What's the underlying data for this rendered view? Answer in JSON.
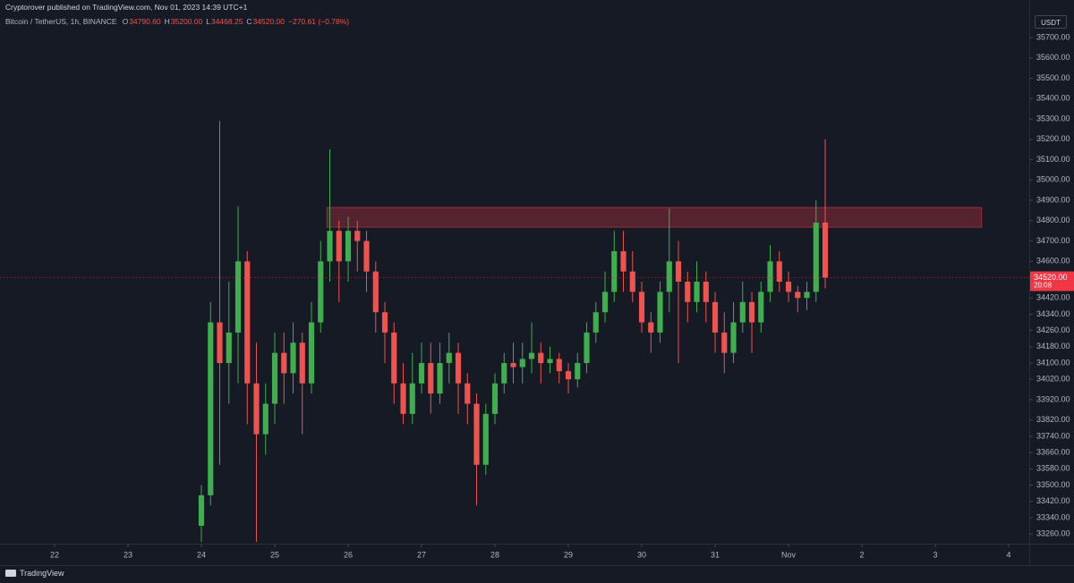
{
  "chart_data": {
    "type": "candlestick",
    "header": "Cryptorover published on TradingView.com, Nov 01, 2023 14:39 UTC+1",
    "legend": {
      "symbol": "Bitcoin / TetherUS, 1h, BINANCE",
      "fields": [
        {
          "key": "O",
          "value": "34790.60"
        },
        {
          "key": "H",
          "value": "35200.00"
        },
        {
          "key": "L",
          "value": "34468.25"
        },
        {
          "key": "C",
          "value": "34520.00"
        }
      ],
      "change": "−270.61 (−0.78%)"
    },
    "currency": "USDT",
    "brand": "TradingView",
    "up_color": "#3fae4f",
    "down_color": "#ef5350",
    "grid": false,
    "xlim": [
      21.256,
      35.28
    ],
    "ylim": [
      33212,
      35885
    ],
    "xticks": [
      22,
      23,
      24,
      25,
      26,
      27,
      28,
      29,
      30,
      31,
      {
        "value": 32,
        "label": "Nov"
      },
      {
        "value": 33,
        "label": "2"
      },
      {
        "value": 34,
        "label": "3"
      },
      {
        "value": 35,
        "label": "4"
      }
    ],
    "yticks": [
      {
        "value": 35700,
        "label": "35700.00"
      },
      {
        "value": 35600,
        "label": "35600.00"
      },
      {
        "value": 35500,
        "label": "35500.00"
      },
      {
        "value": 35400,
        "label": "35400.00"
      },
      {
        "value": 35300,
        "label": "35300.00"
      },
      {
        "value": 35200,
        "label": "35200.00"
      },
      {
        "value": 35100,
        "label": "35100.00"
      },
      {
        "value": 35000,
        "label": "35000.00"
      },
      {
        "value": 34900,
        "label": "34900.00"
      },
      {
        "value": 34800,
        "label": "34800.00"
      },
      {
        "value": 34700,
        "label": "34700.00"
      },
      {
        "value": 34600,
        "label": "34600.00"
      },
      {
        "value": 34420,
        "label": "34420.00"
      },
      {
        "value": 34340,
        "label": "34340.00"
      },
      {
        "value": 34260,
        "label": "34260.00"
      },
      {
        "value": 34180,
        "label": "34180.00"
      },
      {
        "value": 34100,
        "label": "34100.00"
      },
      {
        "value": 34020,
        "label": "34020.00"
      },
      {
        "value": 33920,
        "label": "33920.00"
      },
      {
        "value": 33820,
        "label": "33820.00"
      },
      {
        "value": 33740,
        "label": "33740.00"
      },
      {
        "value": 33660,
        "label": "33660.00"
      },
      {
        "value": 33580,
        "label": "33580.00"
      },
      {
        "value": 33500,
        "label": "33500.00"
      },
      {
        "value": 33420,
        "label": "33420.00"
      },
      {
        "value": 33340,
        "label": "33340.00"
      },
      {
        "value": 33260,
        "label": "33260.00"
      }
    ],
    "price_tag": {
      "value": 34520,
      "label": "34520.00",
      "countdown": "20:08",
      "color": "#f23645"
    },
    "zone": {
      "x": [
        25.71,
        34.63
      ],
      "y": [
        34768,
        34865
      ],
      "color": "#b3303f"
    },
    "series": [
      {
        "name": "BTCUSDT",
        "x": [
          24,
          24.125,
          24.25,
          24.375,
          24.5,
          24.625,
          24.75,
          24.875,
          25,
          25.125,
          25.25,
          25.375,
          25.5,
          25.625,
          25.75,
          25.875,
          26,
          26.125,
          26.25,
          26.375,
          26.5,
          26.625,
          26.75,
          26.875,
          27,
          27.125,
          27.25,
          27.375,
          27.5,
          27.625,
          27.75,
          27.875,
          28,
          28.125,
          28.25,
          28.375,
          28.5,
          28.625,
          28.75,
          28.875,
          29,
          29.125,
          29.25,
          29.375,
          29.5,
          29.625,
          29.75,
          29.875,
          30,
          30.125,
          30.25,
          30.375,
          30.5,
          30.625,
          30.75,
          30.875,
          31,
          31.125,
          31.25,
          31.375,
          31.5,
          31.625,
          31.75,
          31.875,
          32,
          32.125,
          32.25,
          32.375,
          32.5
        ],
        "open": [
          33300,
          33450,
          34300,
          34100,
          34250,
          34600,
          34000,
          33750,
          33900,
          34150,
          34050,
          34200,
          34000,
          34300,
          34600,
          34750,
          34600,
          34750,
          34700,
          34550,
          34350,
          34250,
          34000,
          33850,
          34000,
          34100,
          33950,
          34100,
          34150,
          34000,
          33900,
          33600,
          33850,
          34000,
          34100,
          34080,
          34120,
          34150,
          34100,
          34120,
          34060,
          34020,
          34100,
          34250,
          34350,
          34450,
          34650,
          34550,
          34450,
          34300,
          34250,
          34450,
          34600,
          34500,
          34400,
          34500,
          34400,
          34250,
          34150,
          34300,
          34400,
          34300,
          34450,
          34600,
          34500,
          34450,
          34420,
          34450,
          34790.6
        ],
        "high": [
          33500,
          34400,
          35290,
          34500,
          34870,
          34650,
          34200,
          34000,
          34250,
          34250,
          34300,
          34250,
          34400,
          34700,
          35150,
          34800,
          34820,
          34800,
          34750,
          34600,
          34400,
          34300,
          34100,
          34150,
          34200,
          34200,
          34200,
          34250,
          34200,
          34050,
          33950,
          33900,
          34050,
          34150,
          34200,
          34200,
          34300,
          34200,
          34180,
          34150,
          34100,
          34150,
          34300,
          34400,
          34550,
          34750,
          34750,
          34650,
          34500,
          34350,
          34500,
          34860,
          34700,
          34550,
          34600,
          34550,
          34450,
          34350,
          34400,
          34500,
          34450,
          34500,
          34680,
          34650,
          34550,
          34480,
          34500,
          34900,
          35200
        ],
        "low": [
          33220,
          33400,
          33600,
          33900,
          34000,
          33800,
          33220,
          33650,
          33800,
          33900,
          33950,
          33750,
          33950,
          34250,
          34500,
          34400,
          34500,
          34550,
          34450,
          34250,
          34100,
          33900,
          33800,
          33800,
          33950,
          33850,
          33900,
          34000,
          33850,
          33800,
          33400,
          33550,
          33800,
          33950,
          34000,
          34000,
          34050,
          34000,
          34050,
          34000,
          33950,
          33980,
          34050,
          34200,
          34300,
          34400,
          34450,
          34400,
          34250,
          34150,
          34200,
          34350,
          34100,
          34300,
          34350,
          34300,
          34150,
          34050,
          34100,
          34250,
          34150,
          34250,
          34400,
          34450,
          34400,
          34350,
          34360,
          34400,
          34468.25
        ],
        "close": [
          33450,
          34300,
          34100,
          34250,
          34600,
          34000,
          33750,
          33900,
          34150,
          34050,
          34200,
          34000,
          34300,
          34600,
          34750,
          34600,
          34750,
          34700,
          34550,
          34350,
          34250,
          34000,
          33850,
          34000,
          34100,
          33950,
          34100,
          34150,
          34000,
          33900,
          33600,
          33850,
          34000,
          34100,
          34080,
          34120,
          34150,
          34100,
          34120,
          34060,
          34020,
          34100,
          34250,
          34350,
          34450,
          34650,
          34550,
          34450,
          34300,
          34250,
          34450,
          34600,
          34500,
          34400,
          34500,
          34400,
          34250,
          34150,
          34300,
          34400,
          34300,
          34450,
          34600,
          34500,
          34450,
          34420,
          34450,
          34790.6,
          34520
        ]
      }
    ]
  }
}
